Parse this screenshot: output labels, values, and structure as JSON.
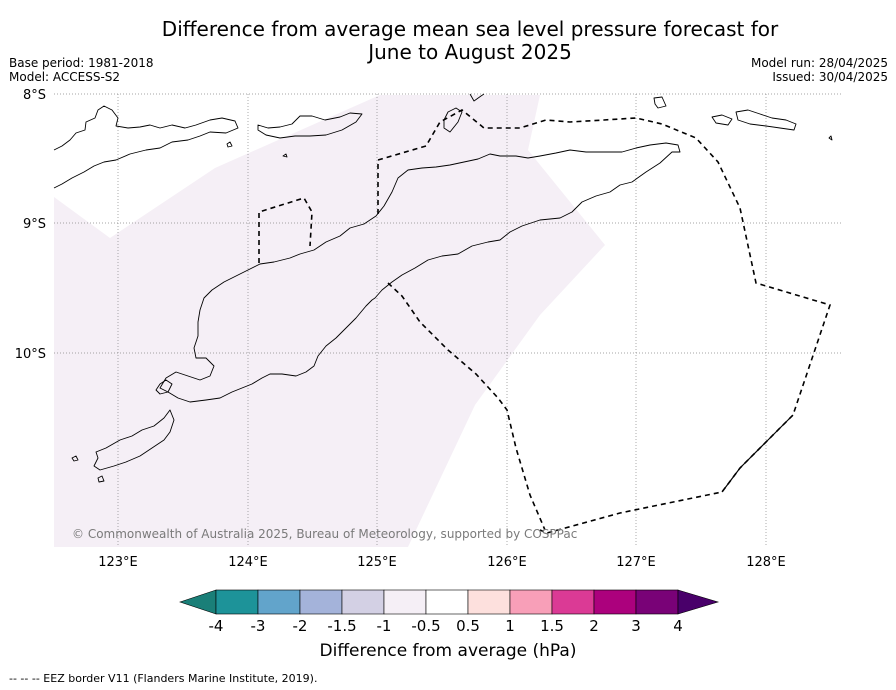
{
  "title_line1": "Difference from average mean sea level pressure forecast for",
  "title_line2": "June to August 2025",
  "meta_left": [
    "Base period: 1981-2018",
    "Model: ACCESS-S2"
  ],
  "meta_right": [
    "Model run: 28/04/2025",
    "Issued: 30/04/2025"
  ],
  "map": {
    "lat_labels": [
      "8°S",
      "9°S",
      "10°S"
    ],
    "lon_labels": [
      "123°E",
      "124°E",
      "125°E",
      "126°E",
      "127°E",
      "128°E"
    ],
    "copyright": "© Commonwealth of Australia 2025, Bureau of Meteorology, supported by COSPPac",
    "fill_color": "#f5eff6",
    "anomaly_shading": "-1 to -0.5 hPa"
  },
  "colorbar": {
    "label": "Difference from average (hPa)",
    "tick_labels": [
      "-4",
      "-3",
      "-2",
      "-1.5",
      "-1",
      "-0.5",
      "0.5",
      "1",
      "1.5",
      "2",
      "3",
      "4"
    ],
    "colors": [
      "#1a7f78",
      "#1d9399",
      "#62a4cb",
      "#a4b3da",
      "#d3d0e4",
      "#f5eff6",
      "#ffffff",
      "#fde0dd",
      "#f89fb8",
      "#db3a95",
      "#ac017d",
      "#790277",
      "#49006a"
    ]
  },
  "footer": "--  --  -- EEZ border V11 (Flanders Marine Institute, 2019)."
}
